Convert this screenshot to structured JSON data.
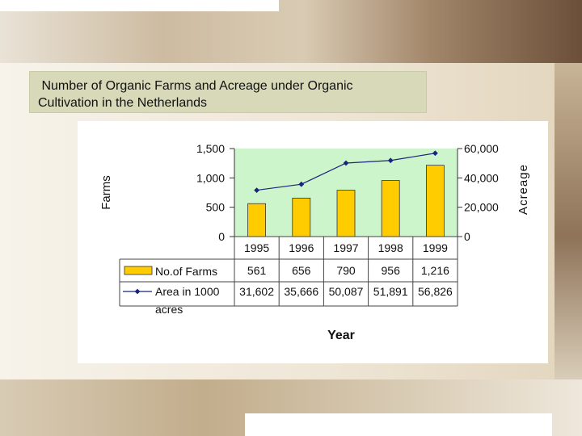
{
  "slide": {
    "title": " Number of Organic Farms and Acreage under Organic\nCultivation in the Netherlands"
  },
  "chart_data": {
    "type": "bar",
    "categories": [
      "1995",
      "1996",
      "1997",
      "1998",
      "1999"
    ],
    "series": [
      {
        "name": "No.of Farms",
        "type": "bar",
        "axis": "left",
        "values": [
          561,
          656,
          790,
          956,
          1216
        ],
        "labels": [
          "561",
          "656",
          "790",
          "956",
          "1,216"
        ]
      },
      {
        "name": "Area in 1000 acres",
        "type": "line",
        "axis": "right",
        "values": [
          31602,
          35666,
          50087,
          51891,
          56826
        ],
        "labels": [
          "31,602",
          "35,666",
          "50,087",
          "51,891",
          "56,826"
        ]
      }
    ],
    "ylabel_left": "Farms",
    "ylabel_right": "Acreage",
    "xlabel": "Year",
    "ylim_left": [
      0,
      1500
    ],
    "ylim_right": [
      0,
      60000
    ],
    "left_ticks": [
      "0",
      "500",
      "1,000",
      "1,500"
    ],
    "right_ticks": [
      "0",
      "20,000",
      "40,000",
      "60,000"
    ],
    "data_table": true,
    "grid": false,
    "colors": {
      "plot_bg": "#ccf5cc",
      "bar_fill": "#ffcc00",
      "bar_stroke": "#333333",
      "line": "#1a237e"
    }
  }
}
